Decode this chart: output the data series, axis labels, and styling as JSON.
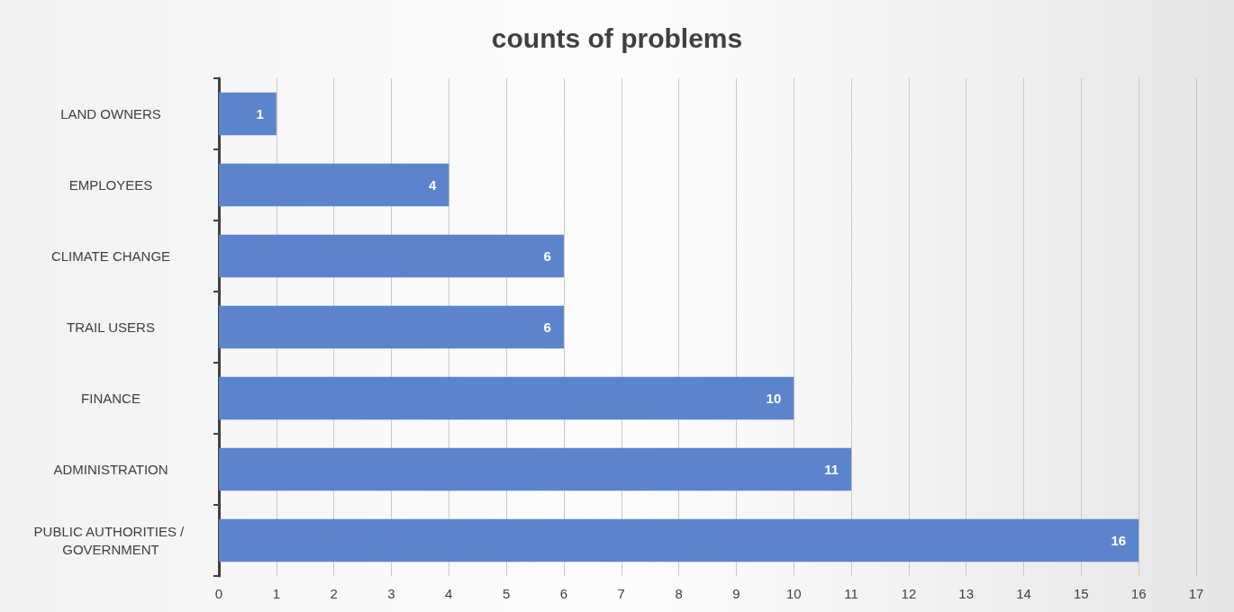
{
  "chart_data": {
    "type": "bar",
    "title": "counts of problems",
    "orientation": "horizontal",
    "categories": [
      "LAND OWNERS",
      "EMPLOYEES",
      "CLIMATE CHANGE",
      "TRAIL USERS",
      "FINANCE",
      "ADMINISTRATION",
      "PUBLIC AUTHORITIES / GOVERNMENT"
    ],
    "values": [
      1,
      4,
      6,
      6,
      10,
      11,
      16
    ],
    "color": "#5b84cc",
    "xlim": [
      0,
      17
    ],
    "xticks": [
      0,
      1,
      2,
      3,
      4,
      5,
      6,
      7,
      8,
      9,
      10,
      11,
      12,
      13,
      14,
      15,
      16,
      17
    ],
    "grid": "x",
    "data_labels": true
  }
}
